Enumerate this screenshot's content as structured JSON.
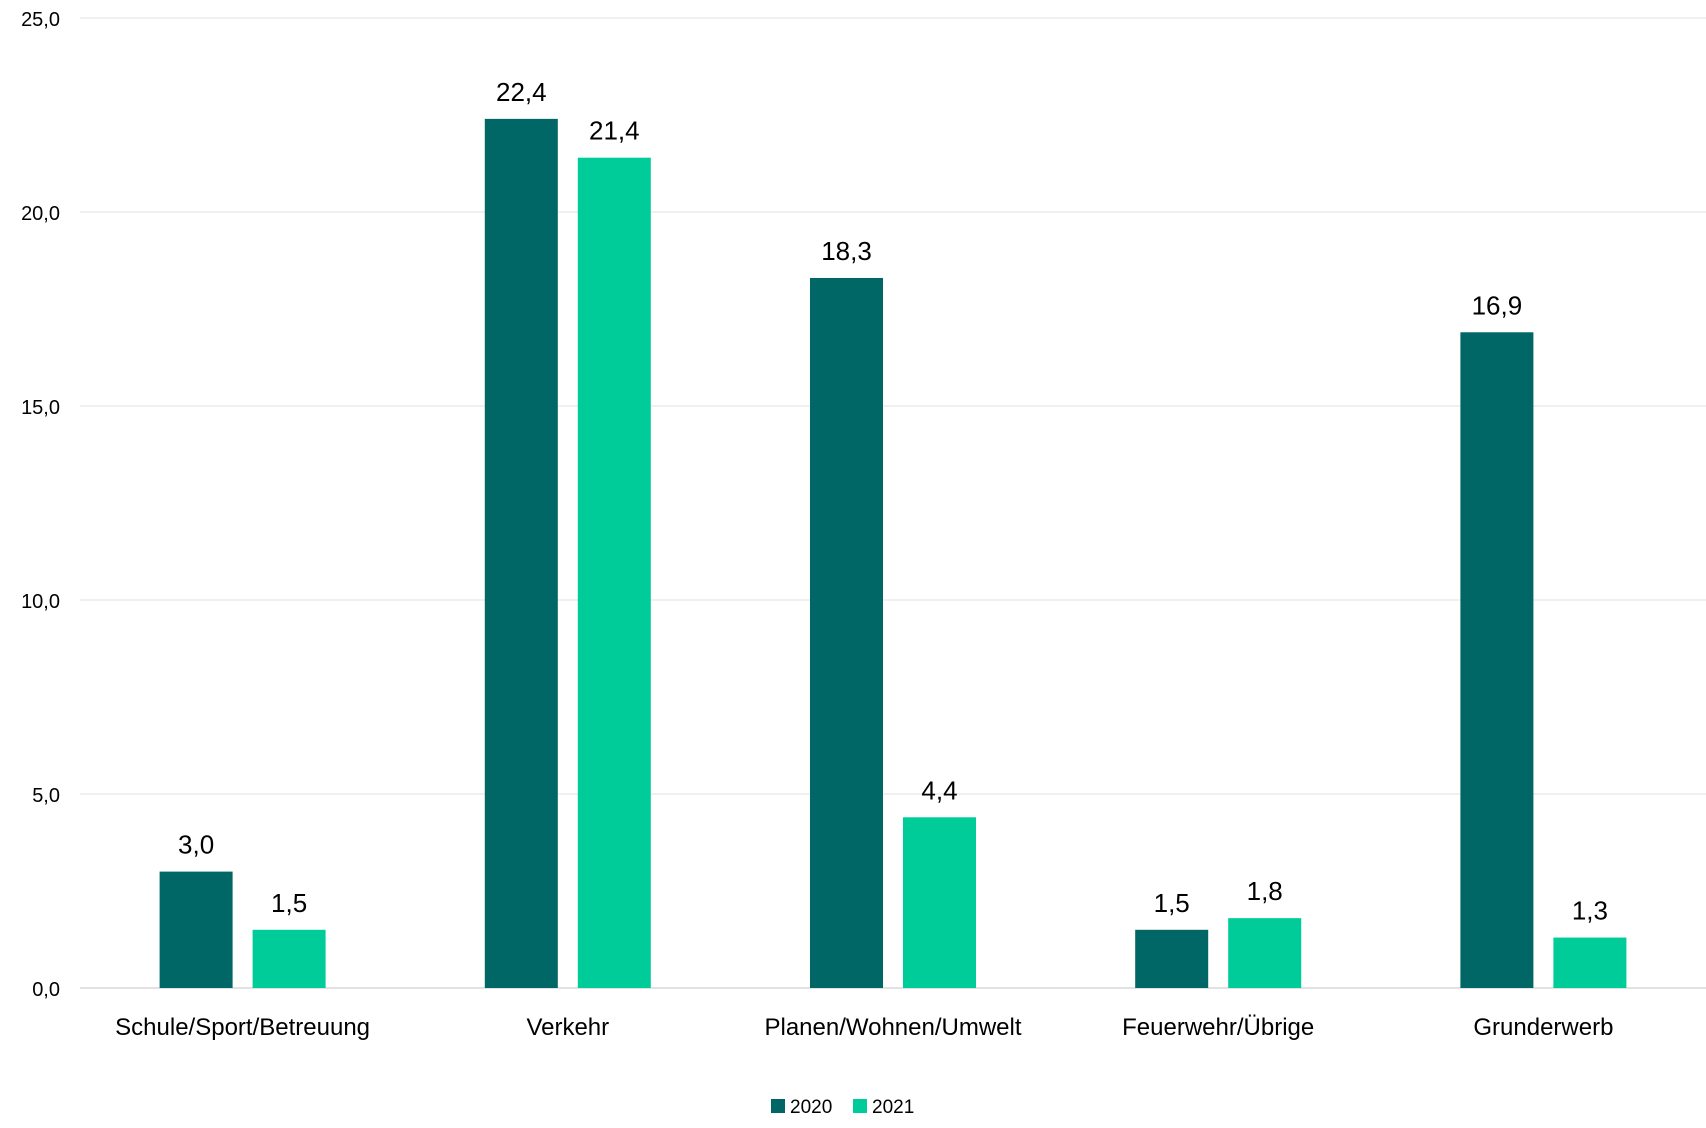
{
  "chart_data": {
    "type": "bar",
    "categories": [
      "Schule/Sport/Betreuung",
      "Verkehr",
      "Planen/Wohnen/Umwelt",
      "Feuerwehr/Übrige",
      "Grunderwerb"
    ],
    "series": [
      {
        "name": "2020",
        "color": "#006666",
        "values": [
          3.0,
          22.4,
          18.3,
          1.5,
          16.9
        ],
        "labels": [
          "3,0",
          "22,4",
          "18,3",
          "1,5",
          "16,9"
        ]
      },
      {
        "name": "2021",
        "color": "#00CC99",
        "values": [
          1.5,
          21.4,
          4.4,
          1.8,
          1.3
        ],
        "labels": [
          "1,5",
          "21,4",
          "4,4",
          "1,8",
          "1,3"
        ]
      }
    ],
    "ylim": [
      0,
      25
    ],
    "yticks": [
      0,
      5,
      10,
      15,
      20,
      25
    ],
    "ytick_labels": [
      "0,0",
      "5,0",
      "10,0",
      "15,0",
      "20,0",
      "25,0"
    ],
    "grid": true,
    "legend_position": "bottom",
    "title": "",
    "xlabel": "",
    "ylabel": ""
  }
}
